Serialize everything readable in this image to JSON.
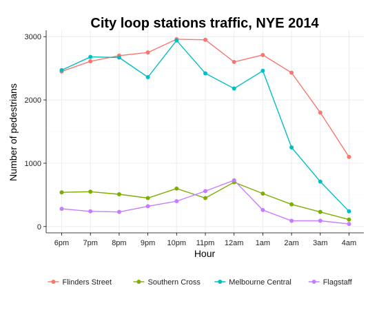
{
  "chart_data": {
    "type": "line",
    "title": "City loop stations traffic, NYE 2014",
    "xlabel": "Hour",
    "ylabel": "Number of pedestrians",
    "categories": [
      "6pm",
      "7pm",
      "8pm",
      "9pm",
      "10pm",
      "11pm",
      "12am",
      "1am",
      "2am",
      "3am",
      "4am"
    ],
    "ylim": [
      -100,
      3100
    ],
    "yticks": [
      0,
      1000,
      2000,
      3000
    ],
    "grid": true,
    "legend_position": "bottom",
    "series": [
      {
        "name": "Flinders Street",
        "color": "#F8766D",
        "values": [
          2450,
          2610,
          2700,
          2750,
          2960,
          2950,
          2600,
          2710,
          2430,
          1800,
          1100
        ]
      },
      {
        "name": "Southern Cross",
        "color": "#7CAE00",
        "values": [
          540,
          550,
          510,
          450,
          600,
          450,
          700,
          520,
          350,
          230,
          110
        ]
      },
      {
        "name": "Melbourne Central",
        "color": "#00BFC4",
        "values": [
          2470,
          2680,
          2670,
          2360,
          2940,
          2420,
          2180,
          2460,
          1250,
          710,
          240
        ]
      },
      {
        "name": "Flagstaff",
        "color": "#C77CFF",
        "values": [
          280,
          240,
          230,
          320,
          400,
          560,
          730,
          260,
          90,
          90,
          40
        ]
      }
    ]
  }
}
